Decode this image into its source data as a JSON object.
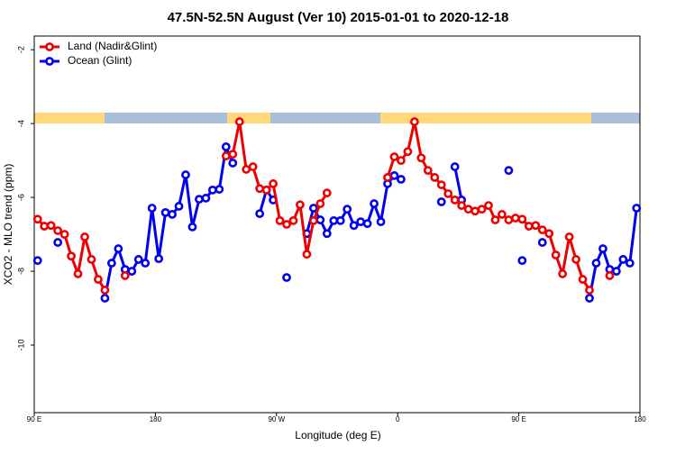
{
  "chart_data": {
    "type": "line",
    "title": "47.5N-52.5N August (Ver 10)   2015-01-01 to 2020-12-18",
    "x_label": "Longitude (deg E)",
    "y_label": "XCO2 - MLO trend (ppm)",
    "xlim": [
      90,
      540
    ],
    "xticks": [
      {
        "value": 90,
        "label": "90 E"
      },
      180,
      {
        "value": 270,
        "label": "90 W"
      },
      {
        "value": 360,
        "label": "0"
      },
      {
        "value": 450,
        "label": "90 E"
      },
      {
        "value": 540,
        "label": "180"
      }
    ],
    "ylim": [
      -11.83,
      -1.63
    ],
    "yticks": [
      -2,
      -4,
      -6,
      -8,
      -10
    ],
    "legend": "upper-left",
    "series": [
      {
        "name": "Ocean (Glint)",
        "color": "#0000ee",
        "x": [
          92.5,
          null,
          107.5,
          null,
          142.5,
          147.5,
          152.5,
          157.5,
          162.5,
          167.5,
          172.5,
          177.5,
          182.5,
          187.5,
          192.5,
          197.5,
          202.5,
          207.5,
          212.5,
          217.5,
          222.5,
          227.5,
          232.5,
          237.5,
          null,
          257.5,
          262.5,
          267.5,
          null,
          277.5,
          null,
          292.5,
          297.5,
          302.5,
          307.5,
          312.5,
          317.5,
          322.5,
          327.5,
          332.5,
          337.5,
          342.5,
          347.5,
          352.5,
          357.5,
          362.5,
          null,
          392.5,
          null,
          402.5,
          407.5,
          null,
          442.5,
          null,
          452.5,
          null,
          467.5,
          null,
          502.5,
          507.5,
          512.5,
          517.5,
          522.5,
          527.5,
          532.5,
          537.5
        ],
        "values": [
          -7.71,
          null,
          -7.22,
          null,
          -8.73,
          -7.78,
          -7.39,
          -7.95,
          -8.0,
          -7.68,
          -7.78,
          -6.29,
          -7.66,
          -6.41,
          -6.46,
          -6.24,
          -5.39,
          -6.8,
          -6.05,
          -6.02,
          -5.8,
          -5.78,
          -4.63,
          -5.07,
          null,
          -6.44,
          -5.8,
          -6.07,
          null,
          -8.17,
          null,
          -6.98,
          -6.29,
          -6.61,
          -6.98,
          -6.63,
          -6.63,
          -6.32,
          -6.76,
          -6.66,
          -6.71,
          -6.17,
          -6.66,
          -5.63,
          -5.41,
          -5.51,
          null,
          -6.12,
          null,
          -5.17,
          -6.07,
          null,
          -5.27,
          null,
          -7.71,
          null,
          -7.22,
          null,
          -8.73,
          -7.78,
          -7.39,
          -7.95,
          -8.0,
          -7.68,
          -7.78,
          -6.29
        ]
      },
      {
        "name": "Land (Nadir&Glint)",
        "color": "#ee0000",
        "x": [
          92.5,
          97.5,
          102.5,
          107.5,
          112.5,
          117.5,
          122.5,
          127.5,
          132.5,
          137.5,
          142.5,
          null,
          157.5,
          null,
          232.5,
          237.5,
          242.5,
          247.5,
          252.5,
          257.5,
          262.5,
          267.5,
          272.5,
          277.5,
          282.5,
          287.5,
          292.5,
          297.5,
          302.5,
          307.5,
          null,
          352.5,
          357.5,
          362.5,
          367.5,
          372.5,
          377.5,
          382.5,
          387.5,
          392.5,
          397.5,
          402.5,
          407.5,
          412.5,
          417.5,
          422.5,
          427.5,
          432.5,
          437.5,
          442.5,
          447.5,
          452.5,
          457.5,
          462.5,
          467.5,
          472.5,
          477.5,
          482.5,
          487.5,
          492.5,
          497.5,
          502.5,
          null,
          517.5
        ],
        "values": [
          -6.59,
          -6.78,
          -6.76,
          -6.9,
          -7.0,
          -7.59,
          -8.07,
          -7.07,
          -7.68,
          -8.22,
          -8.51,
          null,
          -8.12,
          null,
          -4.88,
          -4.83,
          -3.95,
          -5.24,
          -5.17,
          -5.76,
          -5.8,
          -5.63,
          -6.63,
          -6.73,
          -6.63,
          -6.2,
          -7.54,
          -6.63,
          -6.17,
          -5.88,
          null,
          -5.46,
          -4.9,
          -5.0,
          -4.76,
          -3.95,
          -4.93,
          -5.27,
          -5.46,
          -5.66,
          -5.9,
          -6.07,
          -6.22,
          -6.32,
          -6.37,
          -6.32,
          -6.22,
          -6.61,
          -6.46,
          -6.61,
          -6.56,
          -6.59,
          -6.78,
          -6.76,
          -6.88,
          -6.98,
          -7.56,
          -8.07,
          -7.07,
          -7.68,
          -8.22,
          -8.51,
          null,
          -8.12
        ]
      }
    ]
  }
}
